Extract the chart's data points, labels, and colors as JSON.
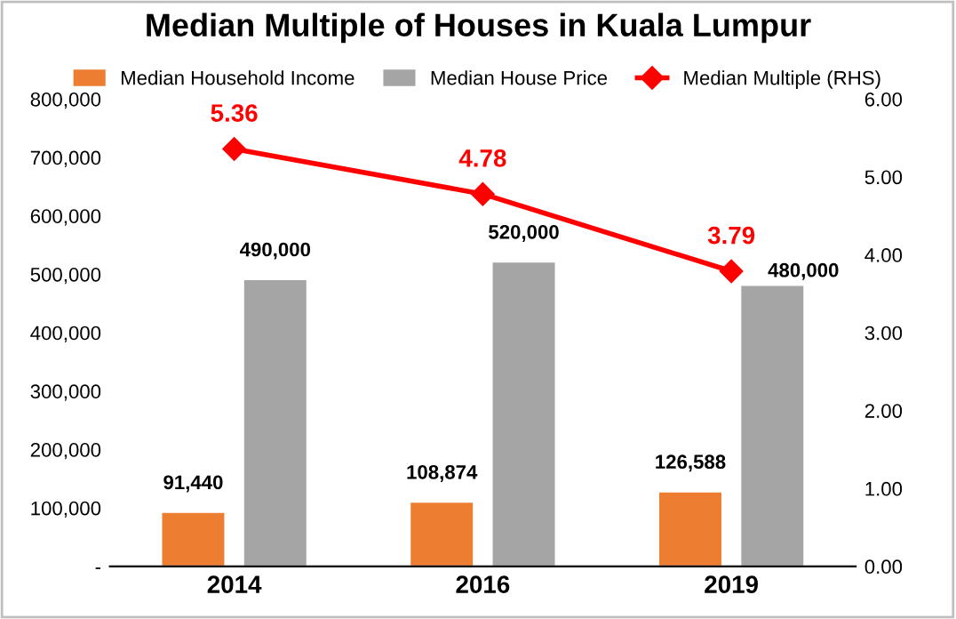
{
  "chart_data": {
    "type": "bar",
    "title": "Median Multiple of Houses in Kuala Lumpur",
    "categories": [
      "2014",
      "2016",
      "2019"
    ],
    "series": [
      {
        "name": "Median Household Income",
        "color": "#ed7d31",
        "values": [
          91440,
          108874,
          126588
        ],
        "value_labels": [
          "91,440",
          "108,874",
          "126,588"
        ]
      },
      {
        "name": "Median House Price",
        "color": "#a5a5a5",
        "values": [
          490000,
          520000,
          480000
        ],
        "value_labels": [
          "490,000",
          "520,000",
          "480,000"
        ]
      },
      {
        "name": "Median Multiple (RHS)",
        "type": "line",
        "axis": "y2",
        "color": "#ff0000",
        "values": [
          5.36,
          4.78,
          3.79
        ],
        "value_labels": [
          "5.36",
          "4.78",
          "3.79"
        ],
        "marker": "diamond",
        "line_style": "solid"
      }
    ],
    "ylim": [
      0,
      800000
    ],
    "yticks": [
      {
        "value": 0,
        "label": "-"
      },
      {
        "value": 100000,
        "label": "100,000"
      },
      {
        "value": 200000,
        "label": "200,000"
      },
      {
        "value": 300000,
        "label": "300,000"
      },
      {
        "value": 400000,
        "label": "400,000"
      },
      {
        "value": 500000,
        "label": "500,000"
      },
      {
        "value": 600000,
        "label": "600,000"
      },
      {
        "value": 700000,
        "label": "700,000"
      },
      {
        "value": 800000,
        "label": "800,000"
      }
    ],
    "y2lim": [
      0,
      6
    ],
    "y2ticks": [
      {
        "value": 0,
        "label": "0.00"
      },
      {
        "value": 1,
        "label": "1.00"
      },
      {
        "value": 2,
        "label": "2.00"
      },
      {
        "value": 3,
        "label": "3.00"
      },
      {
        "value": 4,
        "label": "4.00"
      },
      {
        "value": 5,
        "label": "5.00"
      },
      {
        "value": 6,
        "label": "6.00"
      }
    ],
    "grid": false,
    "legend": "top"
  }
}
